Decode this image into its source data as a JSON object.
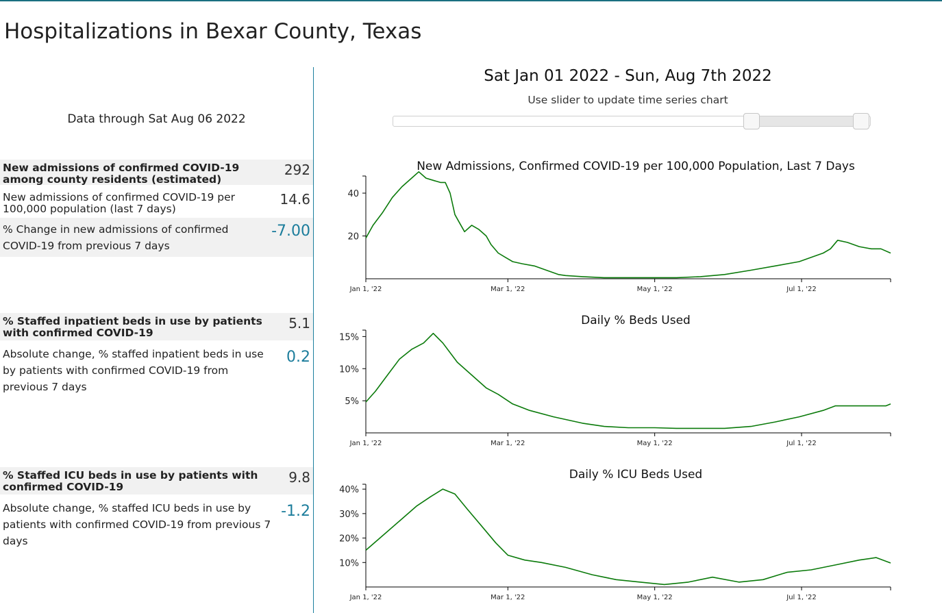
{
  "page": {
    "title": "Hospitalizations in Bexar County, Texas"
  },
  "summary": {
    "data_through": "Data through Sat Aug 06 2022",
    "stats": [
      {
        "label": "New admissions of confirmed COVID-19 among county residents (estimated)",
        "value": "292"
      },
      {
        "label": "New admissions of confirmed COVID-19 per 100,000 population (last 7 days)",
        "value": "14.6"
      },
      {
        "label": "% Change in new admissions of confirmed COVID-19 from previous 7 days",
        "value": "-7.00"
      },
      {
        "label": "% Staffed inpatient beds in use by patients with confirmed COVID-19",
        "value": "5.1"
      },
      {
        "label": "Absolute change, % staffed inpatient beds in use by patients with confirmed COVID-19 from previous 7 days",
        "value": "0.2"
      },
      {
        "label": "% Staffed ICU beds in use by patients with confirmed COVID-19",
        "value": "9.8"
      },
      {
        "label": "Absolute change, % staffed ICU beds in use by patients with confirmed COVID-19 from previous 7 days",
        "value": "-1.2"
      }
    ]
  },
  "range": {
    "title": "Sat Jan 01 2022 - Sun, Aug 7th 2022",
    "subtitle": "Use slider to update time series chart",
    "slider": {
      "start_fraction": 0.75,
      "end_fraction": 0.98
    }
  },
  "colors": {
    "line": "#0a7a0a",
    "accent": "#1c7d9c",
    "divider": "#1b7f9e"
  },
  "chart_data": [
    {
      "type": "line",
      "title": "New Admissions, Confirmed COVID-19 per 100,000 Population, Last 7 Days",
      "x_tick_labels": [
        "Jan 1, '22",
        "Mar 1, '22",
        "May 1, '22",
        "Jul 1, '22"
      ],
      "x_tick_days": [
        0,
        59,
        120,
        181
      ],
      "x_range": [
        "2022-01-01",
        "2022-08-07"
      ],
      "y_tick_labels": [
        "20",
        "40"
      ],
      "y_ticks": [
        20,
        40
      ],
      "ylim": [
        0,
        48
      ],
      "series": [
        {
          "x": [
            "2022-01-01",
            "2022-01-04",
            "2022-01-08",
            "2022-01-12",
            "2022-01-16",
            "2022-01-20",
            "2022-01-23",
            "2022-01-26",
            "2022-01-29",
            "2022-02-01",
            "2022-02-03",
            "2022-02-05",
            "2022-02-07",
            "2022-02-09",
            "2022-02-11",
            "2022-02-14",
            "2022-02-17",
            "2022-02-20",
            "2022-02-22",
            "2022-02-25",
            "2022-02-28",
            "2022-03-03",
            "2022-03-07",
            "2022-03-12",
            "2022-03-17",
            "2022-03-22",
            "2022-03-25",
            "2022-04-01",
            "2022-04-10",
            "2022-04-20",
            "2022-05-01",
            "2022-05-10",
            "2022-05-20",
            "2022-05-30",
            "2022-06-10",
            "2022-06-20",
            "2022-06-30",
            "2022-07-05",
            "2022-07-10",
            "2022-07-13",
            "2022-07-16",
            "2022-07-20",
            "2022-07-25",
            "2022-07-30",
            "2022-08-03",
            "2022-08-07"
          ],
          "values": [
            19,
            25,
            31,
            38,
            43,
            47,
            50,
            47,
            46,
            45,
            45,
            40,
            30,
            26,
            22,
            25,
            23,
            20,
            16,
            12,
            10,
            8,
            7,
            6,
            4,
            2,
            1.5,
            1,
            0.5,
            0.5,
            0.5,
            0.5,
            1,
            2,
            4,
            6,
            8,
            10,
            12,
            14,
            18,
            17,
            15,
            14,
            14,
            12
          ]
        }
      ]
    },
    {
      "type": "line",
      "title": "Daily % Beds Used",
      "x_tick_labels": [
        "Jan 1, '22",
        "Mar 1, '22",
        "May 1, '22",
        "Jul 1, '22"
      ],
      "x_tick_days": [
        0,
        59,
        120,
        181
      ],
      "x_range": [
        "2022-01-01",
        "2022-08-07"
      ],
      "y_tick_labels": [
        "5%",
        "10%",
        "15%"
      ],
      "y_ticks": [
        5,
        10,
        15
      ],
      "ylim": [
        0,
        16
      ],
      "series": [
        {
          "x": [
            "2022-01-01",
            "2022-01-05",
            "2022-01-10",
            "2022-01-15",
            "2022-01-20",
            "2022-01-25",
            "2022-01-29",
            "2022-02-02",
            "2022-02-08",
            "2022-02-14",
            "2022-02-20",
            "2022-02-25",
            "2022-03-03",
            "2022-03-10",
            "2022-03-20",
            "2022-04-01",
            "2022-04-10",
            "2022-04-20",
            "2022-05-01",
            "2022-05-10",
            "2022-05-20",
            "2022-05-30",
            "2022-06-10",
            "2022-06-20",
            "2022-06-30",
            "2022-07-10",
            "2022-07-15",
            "2022-07-30",
            "2022-08-05",
            "2022-08-07"
          ],
          "values": [
            4.8,
            6.5,
            9,
            11.5,
            13,
            14,
            15.5,
            14,
            11,
            9,
            7,
            6,
            4.5,
            3.5,
            2.5,
            1.5,
            1,
            0.8,
            0.8,
            0.7,
            0.7,
            0.7,
            1,
            1.7,
            2.5,
            3.5,
            4.2,
            4.2,
            4.2,
            4.5
          ]
        }
      ]
    },
    {
      "type": "line",
      "title": "Daily % ICU Beds Used",
      "x_tick_labels": [
        "Jan 1, '22",
        "Mar 1, '22",
        "May 1, '22",
        "Jul 1, '22"
      ],
      "x_tick_days": [
        0,
        59,
        120,
        181
      ],
      "x_range": [
        "2022-01-01",
        "2022-08-07"
      ],
      "y_tick_labels": [
        "10%",
        "20%",
        "30%",
        "40%"
      ],
      "y_ticks": [
        10,
        20,
        30,
        40
      ],
      "ylim": [
        0,
        42
      ],
      "series": [
        {
          "x": [
            "2022-01-01",
            "2022-01-08",
            "2022-01-15",
            "2022-01-22",
            "2022-01-28",
            "2022-02-02",
            "2022-02-07",
            "2022-02-12",
            "2022-02-18",
            "2022-02-24",
            "2022-03-01",
            "2022-03-08",
            "2022-03-15",
            "2022-03-25",
            "2022-04-05",
            "2022-04-15",
            "2022-04-25",
            "2022-05-05",
            "2022-05-15",
            "2022-05-25",
            "2022-06-05",
            "2022-06-15",
            "2022-06-25",
            "2022-07-05",
            "2022-07-15",
            "2022-07-25",
            "2022-08-01",
            "2022-08-07"
          ],
          "values": [
            15,
            21,
            27,
            33,
            37,
            40,
            38,
            32,
            25,
            18,
            13,
            11,
            10,
            8,
            5,
            3,
            2,
            1,
            2,
            4,
            2,
            3,
            6,
            7,
            9,
            11,
            12,
            9.8
          ]
        }
      ]
    }
  ]
}
